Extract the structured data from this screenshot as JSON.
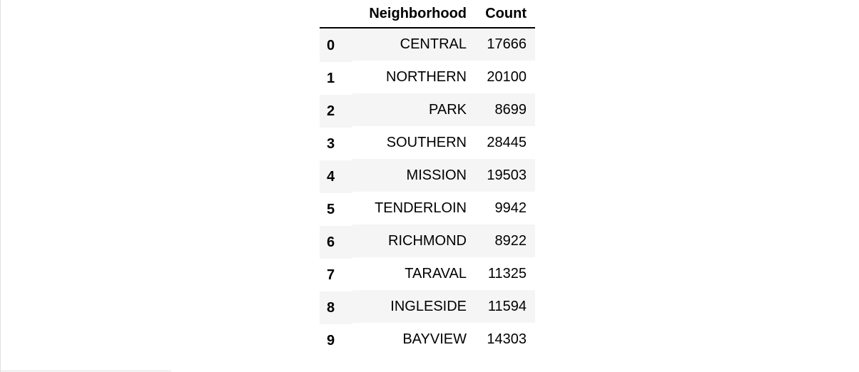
{
  "table": {
    "index_header": "",
    "columns": [
      "Neighborhood",
      "Count"
    ],
    "rows": [
      {
        "index": "0",
        "neighborhood": "CENTRAL",
        "count": "17666"
      },
      {
        "index": "1",
        "neighborhood": "NORTHERN",
        "count": "20100"
      },
      {
        "index": "2",
        "neighborhood": "PARK",
        "count": "8699"
      },
      {
        "index": "3",
        "neighborhood": "SOUTHERN",
        "count": "28445"
      },
      {
        "index": "4",
        "neighborhood": "MISSION",
        "count": "19503"
      },
      {
        "index": "5",
        "neighborhood": "TENDERLOIN",
        "count": "9942"
      },
      {
        "index": "6",
        "neighborhood": "RICHMOND",
        "count": "8922"
      },
      {
        "index": "7",
        "neighborhood": "TARAVAL",
        "count": "11325"
      },
      {
        "index": "8",
        "neighborhood": "INGLESIDE",
        "count": "11594"
      },
      {
        "index": "9",
        "neighborhood": "BAYVIEW",
        "count": "14303"
      }
    ]
  },
  "colors": {
    "striped_row": "#f5f5f5",
    "header_rule": "#000000",
    "frame_border": "#e0e0e0"
  }
}
